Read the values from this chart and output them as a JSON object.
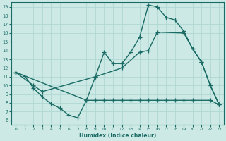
{
  "xlabel": "Humidex (Indice chaleur)",
  "bg_color": "#cce9e5",
  "grid_color": "#afd8d3",
  "line_color": "#1a6b65",
  "xlim": [
    -0.5,
    23.5
  ],
  "ylim": [
    5.5,
    19.5
  ],
  "xticks": [
    0,
    1,
    2,
    3,
    4,
    5,
    6,
    7,
    8,
    9,
    10,
    11,
    12,
    13,
    14,
    15,
    16,
    17,
    18,
    19,
    20,
    21,
    22,
    23
  ],
  "yticks": [
    6,
    7,
    8,
    9,
    10,
    11,
    12,
    13,
    14,
    15,
    16,
    17,
    18,
    19
  ],
  "line1_x": [
    0,
    1,
    2,
    3,
    4,
    5,
    6,
    7,
    8,
    9,
    10,
    11,
    12,
    13,
    14,
    15,
    16,
    17,
    18,
    19,
    20,
    21,
    22,
    23
  ],
  "line1_y": [
    11.5,
    11.1,
    9.7,
    8.7,
    7.9,
    7.4,
    6.6,
    6.3,
    8.3,
    11.0,
    13.8,
    12.5,
    12.5,
    13.8,
    15.5,
    19.2,
    19.0,
    17.8,
    17.5,
    16.2,
    14.2,
    12.7,
    10.0,
    7.8
  ],
  "line2_x": [
    0,
    2,
    3,
    9,
    12,
    14,
    15,
    16,
    19,
    20,
    21,
    22,
    23
  ],
  "line2_y": [
    11.5,
    10.0,
    9.3,
    11.0,
    12.0,
    13.8,
    14.0,
    16.1,
    16.0,
    14.2,
    12.7,
    10.0,
    7.8
  ],
  "line3_x": [
    0,
    8,
    9,
    10,
    11,
    12,
    13,
    14,
    15,
    16,
    17,
    18,
    19,
    20,
    22,
    23
  ],
  "line3_y": [
    11.5,
    8.3,
    8.3,
    8.3,
    8.3,
    8.3,
    8.3,
    8.3,
    8.3,
    8.3,
    8.3,
    8.3,
    8.3,
    8.3,
    8.3,
    7.8
  ],
  "marker": "+",
  "markersize": 4,
  "linewidth": 1.0
}
